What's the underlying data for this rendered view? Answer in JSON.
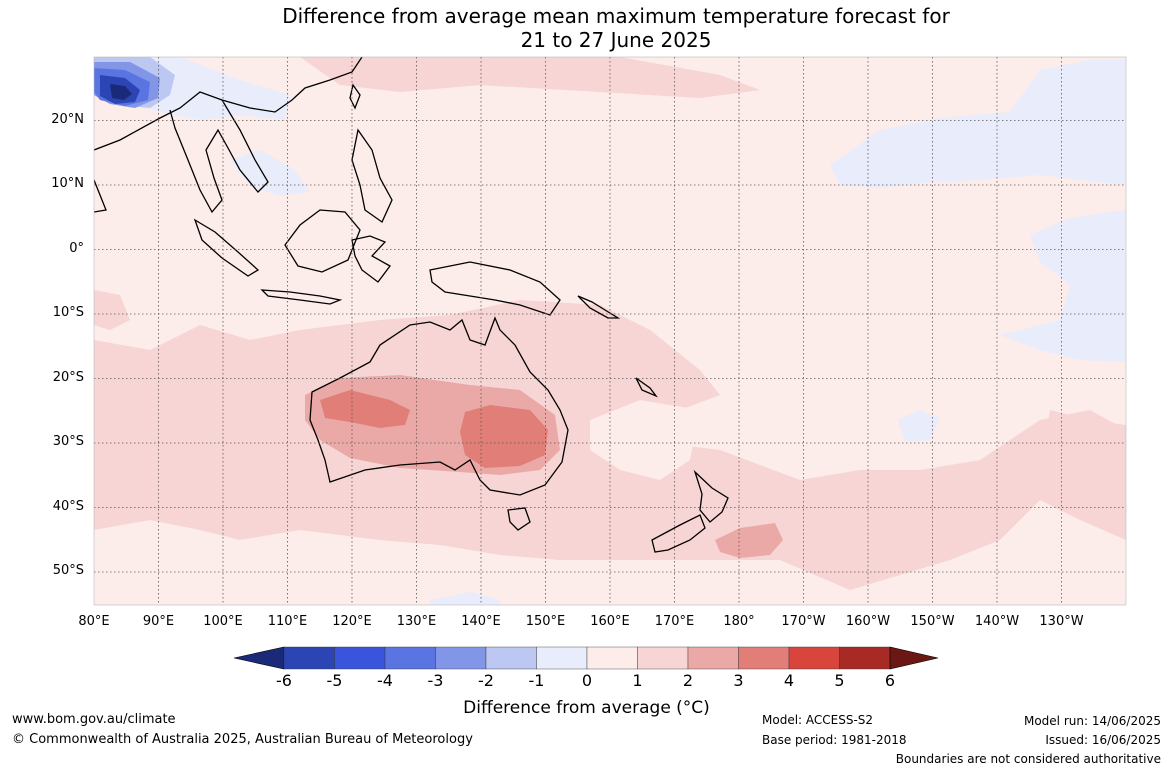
{
  "title_line1": "Difference from average mean maximum temperature forecast for",
  "title_line2": "21 to 27 June 2025",
  "lat_labels": [
    "20°N",
    "10°N",
    "0°",
    "10°S",
    "20°S",
    "30°S",
    "40°S",
    "50°S"
  ],
  "lon_labels": [
    "80°E",
    "90°E",
    "100°E",
    "110°E",
    "120°E",
    "130°E",
    "140°E",
    "150°E",
    "160°E",
    "170°E",
    "180°",
    "170°W",
    "160°W",
    "150°W",
    "140°W",
    "130°W"
  ],
  "colorbar": {
    "ticks": [
      "-6",
      "-5",
      "-4",
      "-3",
      "-2",
      "-1",
      "0",
      "1",
      "2",
      "3",
      "4",
      "5",
      "6"
    ],
    "colors": [
      "#1a2a78",
      "#2b45b5",
      "#3a55dc",
      "#5a74e2",
      "#8296e8",
      "#bcc7f2",
      "#e9edfb",
      "#fcecea",
      "#f6d5d4",
      "#eaa9a7",
      "#e27e78",
      "#d8453c",
      "#a72a25",
      "#6b1713"
    ],
    "label": "Difference from average (°C)"
  },
  "footer": {
    "website": "www.bom.gov.au/climate",
    "copyright": "© Commonwealth of Australia 2025, Australian Bureau of Meteorology",
    "model": "Model: ACCESS-S2",
    "base_period": "Base period: 1981-2018",
    "model_run": "Model run: 14/06/2025",
    "issued": "Issued: 16/06/2025",
    "disclaimer": "Boundaries are not considered authoritative"
  }
}
